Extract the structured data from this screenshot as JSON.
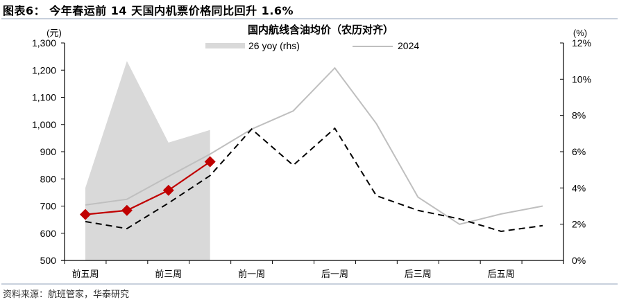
{
  "figure": {
    "title": "图表6： 今年春运前 14 天国内机票价格同比回升 1.6%",
    "source": "资料来源：航班管家，华泰研究"
  },
  "chart_data": {
    "type": "line",
    "title": "国内航线含油均价（农历对齐）",
    "xlabel": "",
    "ylabel": "(元)",
    "ylabel_right": "(%)",
    "ylim": [
      500,
      1300
    ],
    "ylim_right": [
      0,
      12
    ],
    "yticks": [
      "1,300",
      "1,200",
      "1,100",
      "1,000",
      "900",
      "800",
      "700",
      "600",
      "500"
    ],
    "yticks_right": [
      "12%",
      "10%",
      "8%",
      "6%",
      "4%",
      "2%",
      "0%"
    ],
    "categories": [
      "前五周",
      "",
      "前三周",
      "",
      "前一周",
      "",
      "后一周",
      "",
      "后三周",
      "",
      "后五周",
      ""
    ],
    "grid": false,
    "legend_position": "top",
    "legend": [
      {
        "label": "26 yoy (rhs)",
        "style": "area",
        "color": "#d9d9d9"
      },
      {
        "label": "2024",
        "style": "line",
        "color": "#bfbfbf"
      }
    ],
    "series": [
      {
        "name": "26 yoy (rhs)",
        "type": "area",
        "axis": "right",
        "color": "#d9d9d9",
        "values": [
          4.0,
          11.0,
          6.5,
          7.2,
          null,
          null,
          null,
          null,
          null,
          null,
          null,
          null
        ]
      },
      {
        "name": "2024",
        "type": "line",
        "axis": "left",
        "color": "#bfbfbf",
        "dash": false,
        "values": [
          704,
          725,
          809,
          891,
          983,
          1050,
          1208,
          1003,
          733,
          633,
          671,
          700
        ]
      },
      {
        "name": "",
        "type": "line",
        "axis": "left",
        "color": "#000000",
        "dash": true,
        "values": [
          643,
          617,
          711,
          812,
          983,
          850,
          986,
          738,
          684,
          653,
          607,
          628
        ]
      },
      {
        "name": "",
        "type": "line",
        "axis": "left",
        "color": "#c00000",
        "dash": false,
        "marker": "diamond",
        "values": [
          669,
          684,
          758,
          863,
          null,
          null,
          null,
          null,
          null,
          null,
          null,
          null
        ]
      }
    ]
  }
}
